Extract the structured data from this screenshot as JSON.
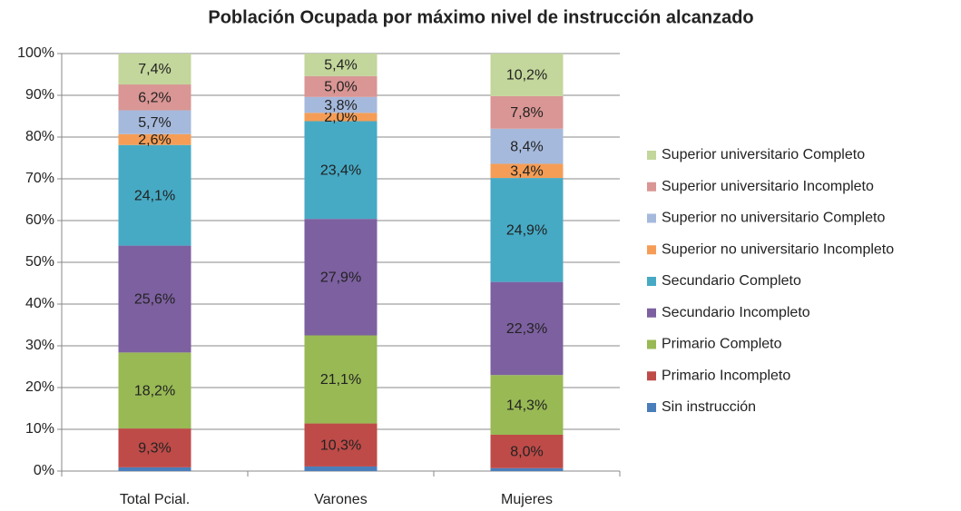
{
  "chart_data": {
    "type": "stacked_bar",
    "title": "Población Ocupada por máximo nivel de instrucción alcanzado",
    "categories": [
      "Total Pcial.",
      "Varones",
      "Mujeres"
    ],
    "series": [
      {
        "name": "Sin instrucción",
        "color": "#4a7ebb",
        "values": [
          0.9,
          1.1,
          0.7
        ]
      },
      {
        "name": "Primario Incompleto",
        "color": "#be4b48",
        "values": [
          9.3,
          10.3,
          8.0
        ],
        "value_labels": [
          "9,3%",
          "10,3%",
          "8,0%"
        ]
      },
      {
        "name": "Primario Completo",
        "color": "#98b954",
        "values": [
          18.2,
          21.1,
          14.3
        ],
        "value_labels": [
          "18,2%",
          "21,1%",
          "14,3%"
        ]
      },
      {
        "name": "Secundario Incompleto",
        "color": "#7d60a0",
        "values": [
          25.6,
          27.9,
          22.3
        ],
        "value_labels": [
          "25,6%",
          "27,9%",
          "22,3%"
        ]
      },
      {
        "name": "Secundario Completo",
        "color": "#46aac5",
        "values": [
          24.1,
          23.4,
          24.9
        ],
        "value_labels": [
          "24,1%",
          "23,4%",
          "24,9%"
        ]
      },
      {
        "name": "Superior no universitario Incompleto",
        "color": "#f59d56",
        "values": [
          2.6,
          2.0,
          3.4
        ],
        "value_labels": [
          "2,6%",
          "2,0%",
          "3,4%"
        ]
      },
      {
        "name": "Superior no universitario Completo",
        "color": "#a5b9dc",
        "values": [
          5.7,
          3.8,
          8.4
        ],
        "value_labels": [
          "5,7%",
          "3,8%",
          "8,4%"
        ]
      },
      {
        "name": "Superior universitario Incompleto",
        "color": "#d99694",
        "values": [
          6.2,
          5.0,
          7.8
        ],
        "value_labels": [
          "6,2%",
          "5,0%",
          "7,8%"
        ]
      },
      {
        "name": "Superior universitario Completo",
        "color": "#c3d69b",
        "values": [
          7.4,
          5.4,
          10.2
        ],
        "value_labels": [
          "7,4%",
          "5,4%",
          "10,2%"
        ]
      }
    ],
    "ylim": [
      0,
      100
    ],
    "yticks": [
      {
        "value": 0,
        "label": "0%"
      },
      {
        "value": 10,
        "label": "10%"
      },
      {
        "value": 20,
        "label": "20%"
      },
      {
        "value": 30,
        "label": "30%"
      },
      {
        "value": 40,
        "label": "40%"
      },
      {
        "value": 50,
        "label": "50%"
      },
      {
        "value": 60,
        "label": "60%"
      },
      {
        "value": 70,
        "label": "70%"
      },
      {
        "value": 80,
        "label": "80%"
      },
      {
        "value": 90,
        "label": "90%"
      },
      {
        "value": 100,
        "label": "100%"
      }
    ],
    "grid": true,
    "legend": "right"
  }
}
